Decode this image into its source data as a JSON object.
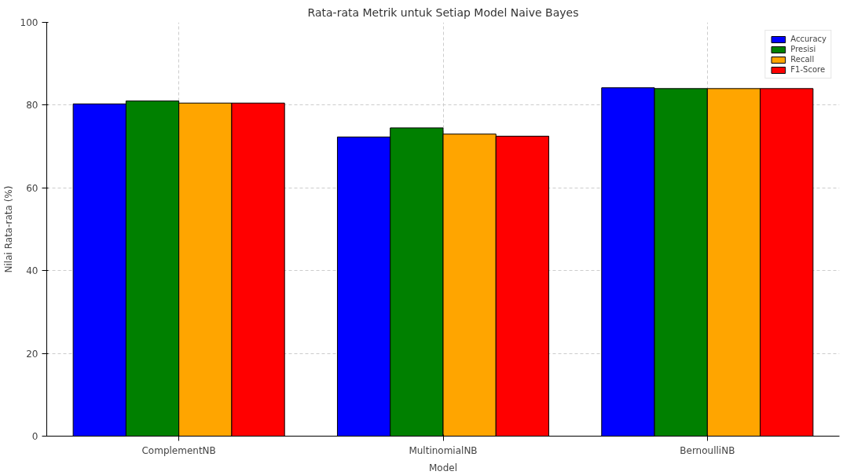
{
  "chart_data": {
    "type": "bar",
    "title": "Rata-rata Metrik untuk Setiap Model Naive Bayes",
    "xlabel": "Model",
    "ylabel": "Nilai Rata-rata (%)",
    "categories": [
      "ComplementNB",
      "MultinomialNB",
      "BernoulliNB"
    ],
    "series": [
      {
        "name": "Accuracy",
        "color": "#0000ff",
        "values": [
          80.3,
          72.3,
          84.2
        ]
      },
      {
        "name": "Presisi",
        "color": "#008000",
        "values": [
          81.0,
          74.5,
          84.0
        ]
      },
      {
        "name": "Recall",
        "color": "#ffa500",
        "values": [
          80.5,
          73.0,
          84.0
        ]
      },
      {
        "name": "F1-Score",
        "color": "#ff0000",
        "values": [
          80.5,
          72.5,
          84.0
        ]
      }
    ],
    "ylim": [
      0,
      100
    ],
    "yticks": [
      0,
      20,
      40,
      60,
      80,
      100
    ],
    "grid": true,
    "legend": "top right"
  }
}
